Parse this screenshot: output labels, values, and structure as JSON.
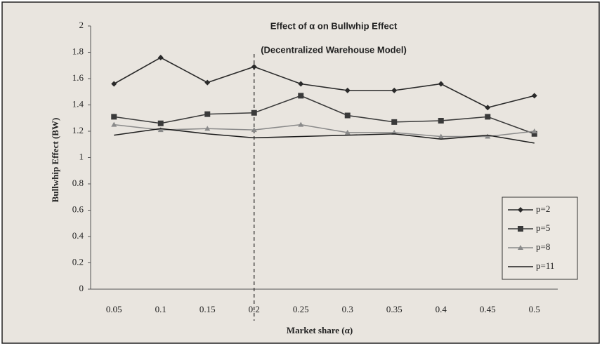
{
  "chart_data": {
    "type": "line",
    "title": "Effect of α on Bullwhip Effect",
    "subtitle": "(Decentralized Warehouse Model)",
    "x_label": "Market share (α)",
    "y_label": "Bullwhip Effect (BW)",
    "categories": [
      "0.05",
      "0.1",
      "0.15",
      "0.2",
      "0.25",
      "0.3",
      "0.35",
      "0.4",
      "0.45",
      "0.5"
    ],
    "series": [
      {
        "name": "p=2",
        "color": "#2a2a2a",
        "marker": "diamond",
        "values": [
          1.56,
          1.76,
          1.57,
          1.69,
          1.56,
          1.51,
          1.51,
          1.56,
          1.38,
          1.47
        ]
      },
      {
        "name": "p=5",
        "color": "#3a3a3a",
        "marker": "square",
        "values": [
          1.31,
          1.26,
          1.33,
          1.34,
          1.47,
          1.32,
          1.27,
          1.28,
          1.31,
          1.18
        ]
      },
      {
        "name": "p=8",
        "color": "#8a8a8a",
        "marker": "triangle",
        "values": [
          1.25,
          1.21,
          1.22,
          1.21,
          1.25,
          1.19,
          1.19,
          1.16,
          1.16,
          1.2
        ]
      },
      {
        "name": "p=11",
        "color": "#1e1e1e",
        "marker": "none",
        "values": [
          1.17,
          1.22,
          1.18,
          1.15,
          1.16,
          1.17,
          1.18,
          1.14,
          1.17,
          1.11
        ]
      }
    ],
    "ylim": [
      0,
      2
    ],
    "yticks": [
      0,
      0.2,
      0.4,
      0.6,
      0.8,
      1,
      1.2,
      1.4,
      1.6,
      1.8,
      2
    ],
    "reference_line_category": "0.2",
    "legend": "right"
  }
}
